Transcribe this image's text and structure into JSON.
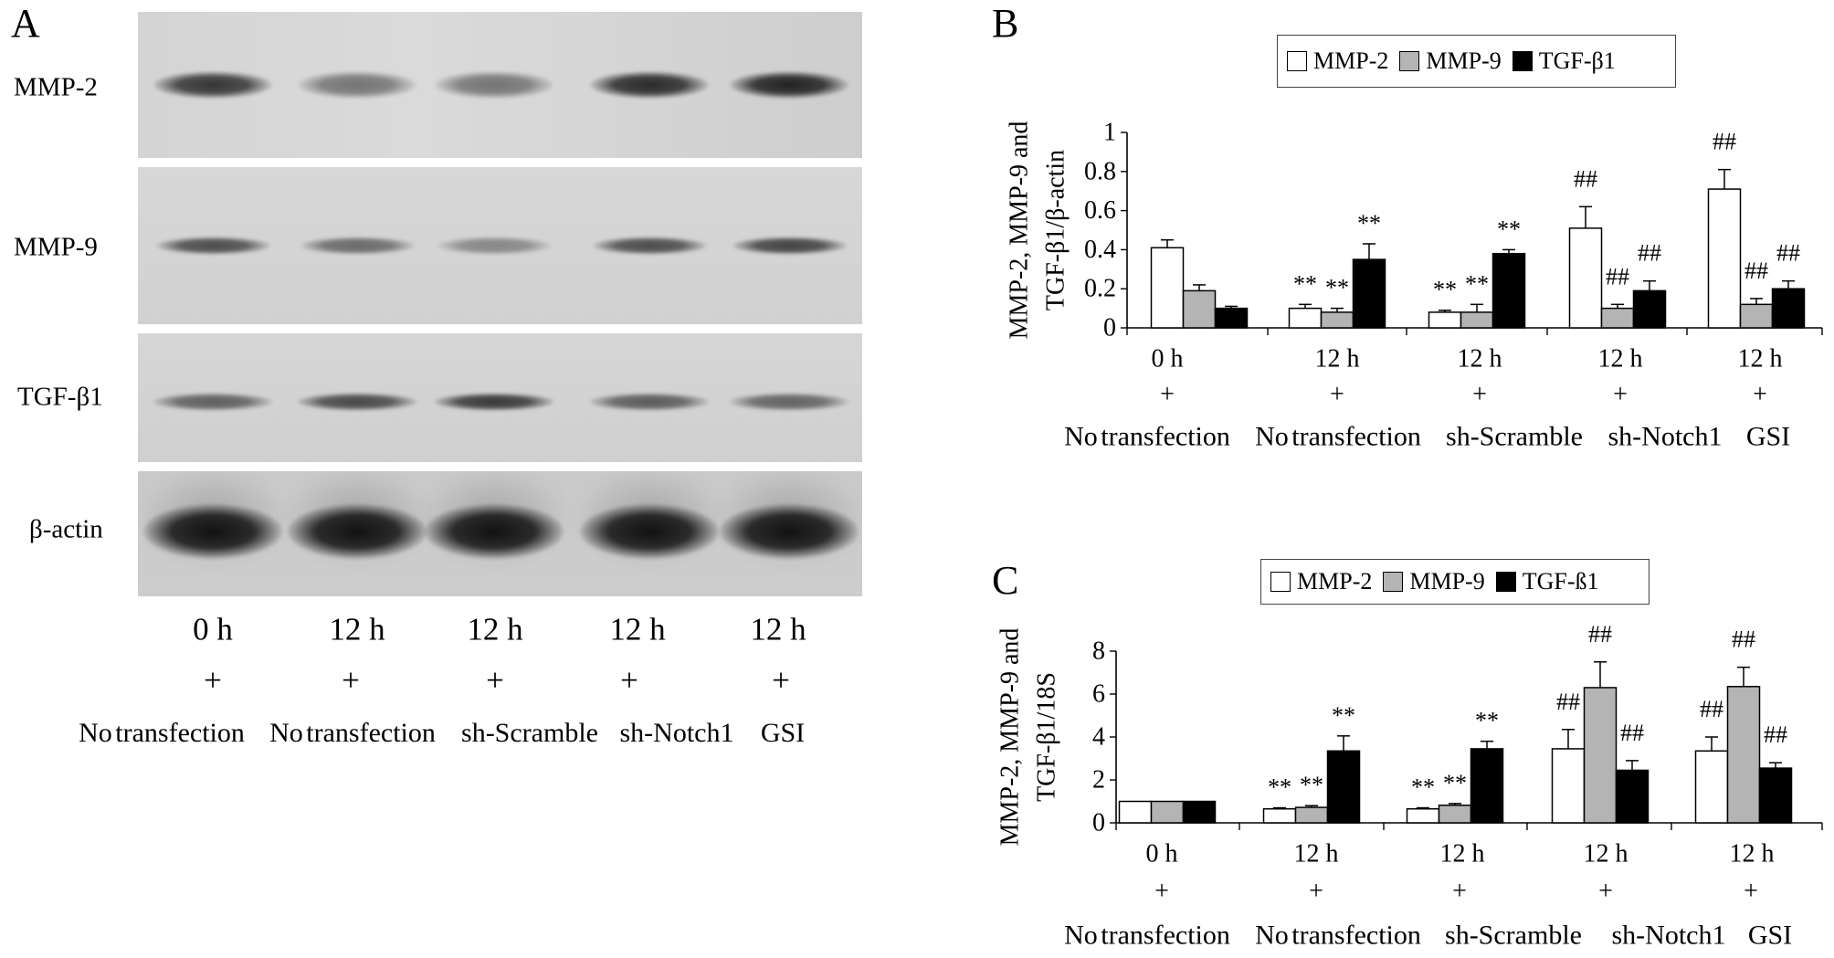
{
  "panels": {
    "A": {
      "letter": "A"
    },
    "B": {
      "letter": "B"
    },
    "C": {
      "letter": "C"
    }
  },
  "blot": {
    "rows": [
      {
        "label": "MMP-2",
        "band_intensity": [
          0.82,
          0.5,
          0.5,
          0.88,
          0.92
        ]
      },
      {
        "label": "MMP-9",
        "band_intensity": [
          0.7,
          0.55,
          0.4,
          0.7,
          0.75
        ]
      },
      {
        "label": "TGF-β1",
        "band_intensity": [
          0.6,
          0.72,
          0.8,
          0.62,
          0.58
        ]
      },
      {
        "label": "β-actin",
        "band_intensity": [
          1,
          1,
          1,
          1,
          1
        ]
      }
    ],
    "lanes": [
      {
        "time": "0 h",
        "sign": "+",
        "condition": "No transfection"
      },
      {
        "time": "12 h",
        "sign": "+",
        "condition": "No transfection"
      },
      {
        "time": "12 h",
        "sign": "+",
        "condition": "sh-Scramble"
      },
      {
        "time": "12 h",
        "sign": "+",
        "condition": "sh-Notch1"
      },
      {
        "time": "12 h",
        "sign": "+",
        "condition": "GSI"
      }
    ]
  },
  "chart_data": [
    {
      "panel": "B",
      "type": "bar",
      "categories": [
        {
          "time": "0 h",
          "sign": "+",
          "condition": "No transfection"
        },
        {
          "time": "12 h",
          "sign": "+",
          "condition": "No transfection"
        },
        {
          "time": "12 h",
          "sign": "+",
          "condition": "sh-Scramble"
        },
        {
          "time": "12 h",
          "sign": "+",
          "condition": "sh-Notch1"
        },
        {
          "time": "12 h",
          "sign": "+",
          "condition": "GSI"
        }
      ],
      "series": [
        {
          "name": "MMP-2",
          "color": "#ffffff",
          "values": [
            0.41,
            0.1,
            0.08,
            0.51,
            0.71
          ],
          "errors": [
            0.04,
            0.02,
            0.01,
            0.11,
            0.1
          ],
          "annotations": [
            "",
            "**",
            "**",
            "##",
            "##"
          ]
        },
        {
          "name": "MMP-9",
          "color": "#b4b4b4",
          "values": [
            0.19,
            0.08,
            0.08,
            0.1,
            0.12
          ],
          "errors": [
            0.03,
            0.02,
            0.04,
            0.02,
            0.03
          ],
          "annotations": [
            "",
            "**",
            "**",
            "##",
            "##"
          ]
        },
        {
          "name": "TGF-β1",
          "color": "#000000",
          "values": [
            0.1,
            0.35,
            0.38,
            0.19,
            0.2
          ],
          "errors": [
            0.01,
            0.08,
            0.02,
            0.05,
            0.04
          ],
          "annotations": [
            "",
            "**",
            "**",
            "##",
            "##"
          ]
        }
      ],
      "ylabel": [
        "MMP-2, MMP-9 and",
        "TGF-β1/β-actin"
      ],
      "xlabel": "",
      "ylim": [
        0,
        1
      ],
      "yticks": [
        0,
        0.2,
        0.4,
        0.6,
        0.8,
        1
      ],
      "ytick_labels": [
        "0",
        "0.2",
        "0.4",
        "0.6",
        "0.8",
        "1"
      ],
      "legend": "top",
      "grid": false
    },
    {
      "panel": "C",
      "type": "bar",
      "categories": [
        {
          "time": "0 h",
          "sign": "+",
          "condition": "No transfection"
        },
        {
          "time": "12 h",
          "sign": "+",
          "condition": "No transfection"
        },
        {
          "time": "12 h",
          "sign": "+",
          "condition": "sh-Scramble"
        },
        {
          "time": "12 h",
          "sign": "+",
          "condition": "sh-Notch1"
        },
        {
          "time": "12 h",
          "sign": "+",
          "condition": "GSI"
        }
      ],
      "series": [
        {
          "name": "MMP-2",
          "color": "#ffffff",
          "values": [
            1.0,
            0.65,
            0.65,
            3.45,
            3.35
          ],
          "errors": [
            0,
            0.05,
            0.05,
            0.9,
            0.65
          ],
          "annotations": [
            "",
            "**",
            "**",
            "##",
            "##"
          ]
        },
        {
          "name": "MMP-9",
          "color": "#b4b4b4",
          "values": [
            1.0,
            0.72,
            0.82,
            6.3,
            6.35
          ],
          "errors": [
            0,
            0.08,
            0.08,
            1.2,
            0.9
          ],
          "annotations": [
            "",
            "**",
            "**",
            "##",
            "##"
          ]
        },
        {
          "name": "TGF-ß1",
          "color": "#000000",
          "values": [
            1.0,
            3.35,
            3.45,
            2.45,
            2.55
          ],
          "errors": [
            0,
            0.7,
            0.35,
            0.45,
            0.25
          ],
          "annotations": [
            "",
            "**",
            "**",
            "##",
            "##"
          ]
        }
      ],
      "ylabel": [
        "MMP-2, MMP-9 and",
        "TGF-β1/18S"
      ],
      "xlabel": "",
      "ylim": [
        0,
        8
      ],
      "yticks": [
        0,
        2,
        4,
        6,
        8
      ],
      "ytick_labels": [
        "0",
        "2",
        "4",
        "6",
        "8"
      ],
      "legend": "top",
      "grid": false
    }
  ]
}
